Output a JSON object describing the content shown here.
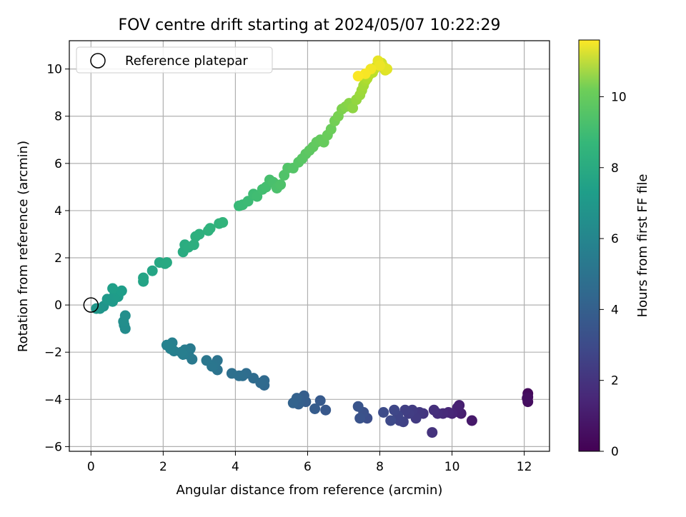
{
  "chart_data": {
    "type": "scatter",
    "title": "FOV centre drift starting at 2024/05/07 10:22:29",
    "xlabel": "Angular distance from reference (arcmin)",
    "ylabel": "Rotation from reference (arcmin)",
    "xlim": [
      -0.6,
      12.7
    ],
    "ylim": [
      -6.2,
      11.2
    ],
    "xticks": [
      0,
      2,
      4,
      6,
      8,
      10,
      12
    ],
    "yticks": [
      -6,
      -4,
      -2,
      0,
      2,
      4,
      6,
      8,
      10
    ],
    "grid": true,
    "legend": {
      "position": "top-left",
      "entries": [
        "Reference platepar"
      ]
    },
    "reference_point": {
      "x": 0,
      "y": 0,
      "label": "Reference platepar",
      "marker": "open-circle"
    },
    "colorbar": {
      "label": "Hours from first FF file",
      "range": [
        0,
        11.6
      ],
      "ticks": [
        0,
        2,
        4,
        6,
        8,
        10
      ],
      "colormap": "viridis"
    },
    "columns": [
      "x",
      "y",
      "hours"
    ],
    "points": [
      [
        12.1,
        -3.75,
        0.3
      ],
      [
        12.1,
        -3.9,
        0.35
      ],
      [
        12.1,
        -4.1,
        0.4
      ],
      [
        12.08,
        -3.95,
        0.45
      ],
      [
        10.55,
        -4.9,
        0.8
      ],
      [
        10.25,
        -4.6,
        0.9
      ],
      [
        10.2,
        -4.25,
        1.0
      ],
      [
        10.2,
        -4.55,
        1.05
      ],
      [
        10.15,
        -4.35,
        1.1
      ],
      [
        10.0,
        -4.6,
        1.2
      ],
      [
        9.9,
        -4.55,
        1.3
      ],
      [
        9.75,
        -4.6,
        1.4
      ],
      [
        9.6,
        -4.6,
        1.5
      ],
      [
        9.5,
        -4.45,
        1.6
      ],
      [
        9.45,
        -5.4,
        1.7
      ],
      [
        9.2,
        -4.6,
        1.8
      ],
      [
        9.1,
        -4.55,
        1.9
      ],
      [
        9.0,
        -4.8,
        2.0
      ],
      [
        8.9,
        -4.45,
        2.05
      ],
      [
        8.8,
        -4.6,
        2.1
      ],
      [
        8.7,
        -4.45,
        2.2
      ],
      [
        8.65,
        -4.95,
        2.3
      ],
      [
        8.55,
        -4.9,
        2.35
      ],
      [
        8.5,
        -4.7,
        2.4
      ],
      [
        8.4,
        -4.45,
        2.5
      ],
      [
        8.3,
        -4.9,
        2.6
      ],
      [
        8.1,
        -4.55,
        2.7
      ],
      [
        7.65,
        -4.8,
        2.8
      ],
      [
        7.55,
        -4.55,
        2.9
      ],
      [
        7.45,
        -4.8,
        3.0
      ],
      [
        7.4,
        -4.3,
        3.05
      ],
      [
        6.5,
        -4.45,
        3.2
      ],
      [
        6.35,
        -4.05,
        3.3
      ],
      [
        6.2,
        -4.4,
        3.35
      ],
      [
        5.95,
        -4.1,
        3.4
      ],
      [
        5.9,
        -3.85,
        3.45
      ],
      [
        5.8,
        -4.05,
        3.5
      ],
      [
        5.75,
        -4.2,
        3.55
      ],
      [
        5.7,
        -3.95,
        3.6
      ],
      [
        5.6,
        -4.15,
        3.65
      ],
      [
        4.8,
        -3.4,
        3.9
      ],
      [
        4.8,
        -3.2,
        3.95
      ],
      [
        4.7,
        -3.3,
        4.0
      ],
      [
        4.5,
        -3.1,
        4.05
      ],
      [
        4.3,
        -2.9,
        4.1
      ],
      [
        4.2,
        -3.0,
        4.15
      ],
      [
        4.1,
        -3.0,
        4.2
      ],
      [
        3.9,
        -2.9,
        4.25
      ],
      [
        3.5,
        -2.75,
        4.4
      ],
      [
        3.5,
        -2.35,
        4.45
      ],
      [
        3.4,
        -2.55,
        4.5
      ],
      [
        3.35,
        -2.6,
        4.55
      ],
      [
        3.2,
        -2.35,
        4.6
      ],
      [
        2.8,
        -2.3,
        4.7
      ],
      [
        2.75,
        -1.85,
        4.75
      ],
      [
        2.7,
        -2.1,
        4.8
      ],
      [
        2.6,
        -1.9,
        4.85
      ],
      [
        2.55,
        -2.1,
        4.9
      ],
      [
        2.5,
        -2.0,
        4.95
      ],
      [
        2.3,
        -1.95,
        5.0
      ],
      [
        2.25,
        -1.6,
        5.05
      ],
      [
        2.2,
        -1.85,
        5.1
      ],
      [
        2.1,
        -1.7,
        5.15
      ],
      [
        0.95,
        -1.0,
        5.6
      ],
      [
        0.92,
        -0.85,
        5.65
      ],
      [
        0.9,
        -0.7,
        5.7
      ],
      [
        0.95,
        -0.45,
        5.75
      ],
      [
        0.35,
        -0.05,
        6.0
      ],
      [
        0.25,
        -0.15,
        6.05
      ],
      [
        0.15,
        -0.15,
        6.1
      ],
      [
        0.45,
        0.25,
        6.2
      ],
      [
        0.6,
        0.15,
        6.25
      ],
      [
        0.65,
        0.4,
        6.3
      ],
      [
        0.75,
        0.35,
        6.35
      ],
      [
        0.8,
        0.55,
        6.4
      ],
      [
        0.85,
        0.6,
        6.45
      ],
      [
        0.6,
        0.7,
        6.5
      ],
      [
        1.45,
        1.0,
        6.7
      ],
      [
        1.45,
        1.15,
        6.75
      ],
      [
        1.7,
        1.45,
        6.8
      ],
      [
        1.9,
        1.8,
        6.9
      ],
      [
        2.05,
        1.75,
        6.95
      ],
      [
        2.1,
        1.8,
        7.0
      ],
      [
        2.55,
        2.25,
        7.1
      ],
      [
        2.6,
        2.55,
        7.15
      ],
      [
        2.7,
        2.45,
        7.2
      ],
      [
        2.85,
        2.55,
        7.25
      ],
      [
        2.9,
        2.9,
        7.3
      ],
      [
        3.0,
        3.0,
        7.35
      ],
      [
        3.25,
        3.15,
        7.4
      ],
      [
        3.3,
        3.25,
        7.45
      ],
      [
        3.55,
        3.45,
        7.5
      ],
      [
        3.65,
        3.5,
        7.55
      ],
      [
        4.1,
        4.2,
        7.8
      ],
      [
        4.2,
        4.25,
        7.85
      ],
      [
        4.35,
        4.4,
        7.9
      ],
      [
        4.5,
        4.7,
        7.95
      ],
      [
        4.6,
        4.6,
        8.0
      ],
      [
        4.75,
        4.9,
        8.05
      ],
      [
        4.85,
        5.0,
        8.1
      ],
      [
        4.95,
        5.3,
        8.15
      ],
      [
        5.05,
        5.2,
        8.2
      ],
      [
        5.15,
        4.95,
        8.25
      ],
      [
        5.25,
        5.1,
        8.3
      ],
      [
        5.35,
        5.5,
        8.35
      ],
      [
        5.45,
        5.8,
        8.4
      ],
      [
        5.6,
        5.8,
        8.45
      ],
      [
        5.75,
        6.05,
        8.5
      ],
      [
        5.85,
        6.2,
        8.55
      ],
      [
        5.95,
        6.4,
        8.6
      ],
      [
        6.05,
        6.55,
        8.65
      ],
      [
        6.15,
        6.7,
        8.7
      ],
      [
        6.25,
        6.9,
        8.75
      ],
      [
        6.35,
        7.0,
        8.8
      ],
      [
        6.45,
        6.9,
        8.85
      ],
      [
        6.55,
        7.2,
        8.9
      ],
      [
        6.65,
        7.45,
        8.95
      ],
      [
        6.75,
        7.8,
        9.1
      ],
      [
        6.85,
        8.0,
        9.2
      ],
      [
        6.95,
        8.3,
        9.3
      ],
      [
        7.05,
        8.4,
        9.4
      ],
      [
        7.15,
        8.55,
        9.5
      ],
      [
        7.25,
        8.35,
        9.6
      ],
      [
        7.35,
        8.7,
        9.7
      ],
      [
        7.45,
        8.9,
        9.8
      ],
      [
        7.5,
        9.1,
        9.9
      ],
      [
        7.55,
        9.3,
        10.0
      ],
      [
        7.6,
        9.5,
        10.1
      ],
      [
        7.65,
        9.6,
        10.2
      ],
      [
        7.7,
        9.75,
        10.3
      ],
      [
        7.8,
        9.85,
        10.4
      ],
      [
        7.85,
        10.0,
        10.5
      ],
      [
        7.9,
        10.1,
        10.6
      ],
      [
        7.95,
        10.2,
        10.7
      ],
      [
        8.05,
        10.25,
        10.8
      ],
      [
        8.1,
        10.1,
        10.9
      ],
      [
        8.15,
        9.95,
        11.0
      ],
      [
        8.2,
        10.0,
        11.1
      ],
      [
        7.95,
        10.35,
        11.2
      ],
      [
        8.0,
        10.15,
        11.3
      ],
      [
        7.75,
        10.0,
        11.4
      ],
      [
        7.6,
        9.8,
        11.5
      ],
      [
        7.4,
        9.7,
        11.55
      ]
    ]
  }
}
